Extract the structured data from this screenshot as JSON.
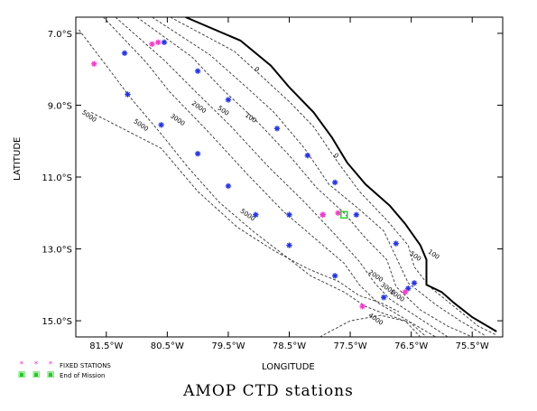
{
  "title": "AMOP CTD stations",
  "xlabel": "LONGITUDE",
  "ylabel": "LATITUDE",
  "x_ticks": [
    {
      "value": -81.5,
      "label": "81.5°W"
    },
    {
      "value": -80.5,
      "label": "80.5°W"
    },
    {
      "value": -79.5,
      "label": "79.5°W"
    },
    {
      "value": -78.5,
      "label": "78.5°W"
    },
    {
      "value": -77.5,
      "label": "77.5°W"
    },
    {
      "value": -76.5,
      "label": "76.5°W"
    },
    {
      "value": -75.5,
      "label": "75.5°W"
    }
  ],
  "y_ticks": [
    {
      "value": -7.0,
      "label": "7.0°S"
    },
    {
      "value": -9.0,
      "label": "9.0°S"
    },
    {
      "value": -11.0,
      "label": "11.0°S"
    },
    {
      "value": -13.0,
      "label": "13.0°S"
    },
    {
      "value": -15.0,
      "label": "15.0°S"
    }
  ],
  "x_range": [
    -82.0,
    -75.0
  ],
  "y_range": [
    -15.45,
    -6.55
  ],
  "legend": [
    {
      "label": "FIXED STATIONS",
      "color": "#ff33cc",
      "symbol": "asterisk"
    },
    {
      "label": "End of Mission",
      "color": "#22cc22",
      "symbol": "square"
    }
  ],
  "coastline": [
    [
      -80.2,
      -6.55
    ],
    [
      -79.3,
      -7.2
    ],
    [
      -78.8,
      -7.9
    ],
    [
      -78.5,
      -8.5
    ],
    [
      -78.1,
      -9.2
    ],
    [
      -77.8,
      -9.9
    ],
    [
      -77.55,
      -10.6
    ],
    [
      -77.25,
      -11.2
    ],
    [
      -76.85,
      -11.8
    ],
    [
      -76.6,
      -12.3
    ],
    [
      -76.35,
      -12.9
    ],
    [
      -76.25,
      -13.3
    ],
    [
      -76.25,
      -13.6
    ],
    [
      -76.25,
      -14.0
    ],
    [
      -76.0,
      -14.2
    ],
    [
      -75.8,
      -14.5
    ],
    [
      -75.5,
      -14.9
    ],
    [
      -75.1,
      -15.3
    ]
  ],
  "contours": [
    {
      "label": "100",
      "points": [
        [
          -80.45,
          -6.55
        ],
        [
          -79.4,
          -7.5
        ],
        [
          -78.95,
          -8.2
        ],
        [
          -78.5,
          -8.9
        ],
        [
          -78.1,
          -9.6
        ],
        [
          -77.7,
          -10.6
        ],
        [
          -77.35,
          -11.4
        ],
        [
          -76.9,
          -12.2
        ],
        [
          -76.55,
          -12.9
        ],
        [
          -76.45,
          -13.5
        ],
        [
          -76.2,
          -14.05
        ],
        [
          -75.8,
          -14.6
        ],
        [
          -75.4,
          -15.15
        ],
        [
          -75.1,
          -15.4
        ]
      ],
      "label_at": [
        -79.2,
        -9.35
      ]
    },
    {
      "label": "500",
      "points": [
        [
          -80.75,
          -6.55
        ],
        [
          -79.8,
          -7.6
        ],
        [
          -79.2,
          -8.5
        ],
        [
          -78.75,
          -9.2
        ],
        [
          -78.25,
          -10.2
        ],
        [
          -77.85,
          -11.2
        ],
        [
          -77.35,
          -11.9
        ],
        [
          -76.95,
          -12.5
        ],
        [
          -76.7,
          -13.4
        ],
        [
          -76.55,
          -13.95
        ],
        [
          -76.1,
          -14.55
        ],
        [
          -75.7,
          -15.0
        ],
        [
          -75.3,
          -15.4
        ]
      ],
      "label_at": [
        -79.6,
        -9.2
      ]
    },
    {
      "label": "1000",
      "points": [
        [
          -81.0,
          -6.55
        ],
        [
          -80.1,
          -7.65
        ],
        [
          -79.6,
          -8.55
        ],
        [
          -79.0,
          -9.5
        ],
        [
          -78.5,
          -10.4
        ],
        [
          -78.05,
          -11.3
        ],
        [
          -77.6,
          -12.0
        ],
        [
          -77.25,
          -12.7
        ],
        [
          -76.9,
          -13.3
        ],
        [
          -76.75,
          -14.05
        ],
        [
          -76.35,
          -14.7
        ],
        [
          -75.9,
          -15.15
        ],
        [
          -75.5,
          -15.45
        ]
      ],
      "label_at": [
        -76.7,
        -14.35
      ]
    },
    {
      "label": "2000",
      "points": [
        [
          -81.35,
          -6.55
        ],
        [
          -80.55,
          -7.75
        ],
        [
          -80.05,
          -8.6
        ],
        [
          -79.45,
          -9.6
        ],
        [
          -78.85,
          -10.7
        ],
        [
          -78.25,
          -11.7
        ],
        [
          -77.75,
          -12.6
        ],
        [
          -77.35,
          -13.35
        ],
        [
          -77.1,
          -13.95
        ],
        [
          -76.85,
          -14.4
        ],
        [
          -76.35,
          -14.95
        ],
        [
          -75.9,
          -15.45
        ]
      ],
      "label_at": [
        -80.1,
        -9.1
      ]
    },
    {
      "label": "3000",
      "points": [
        [
          -81.55,
          -6.55
        ],
        [
          -80.85,
          -7.8
        ],
        [
          -80.45,
          -8.65
        ],
        [
          -79.85,
          -9.7
        ],
        [
          -79.2,
          -10.9
        ],
        [
          -78.6,
          -11.95
        ],
        [
          -78.05,
          -12.75
        ],
        [
          -77.6,
          -13.4
        ],
        [
          -77.35,
          -14.0
        ],
        [
          -77.05,
          -14.5
        ],
        [
          -76.55,
          -15.0
        ],
        [
          -76.25,
          -15.45
        ]
      ],
      "label_at": [
        -80.5,
        -9.35
      ]
    },
    {
      "label": "5000",
      "points": [
        [
          -81.95,
          -6.9
        ],
        [
          -81.5,
          -7.9
        ],
        [
          -81.1,
          -8.8
        ],
        [
          -80.6,
          -9.8
        ],
        [
          -80.15,
          -10.75
        ],
        [
          -79.65,
          -11.7
        ],
        [
          -79.1,
          -12.5
        ],
        [
          -78.6,
          -13.15
        ],
        [
          -78.15,
          -13.75
        ],
        [
          -77.6,
          -14.2
        ],
        [
          -77.25,
          -14.6
        ],
        [
          -76.95,
          -14.8
        ],
        [
          -76.6,
          -15.0
        ],
        [
          -76.35,
          -15.45
        ]
      ],
      "label_at": [
        -80.95,
        -9.45
      ]
    },
    {
      "label": "5000",
      "points": [
        [
          -81.75,
          -9.2
        ],
        [
          -80.6,
          -10.2
        ],
        [
          -80.0,
          -11.4
        ],
        [
          -79.35,
          -12.4
        ],
        [
          -78.75,
          -13.05
        ],
        [
          -78.2,
          -13.55
        ],
        [
          -77.7,
          -13.9
        ],
        [
          -77.35,
          -14.3
        ],
        [
          -77.0,
          -14.5
        ],
        [
          -76.7,
          -14.75
        ]
      ],
      "label_at": [
        -79.3,
        -12.2
      ]
    },
    {
      "label": "4000",
      "points": [
        [
          -78.0,
          -15.45
        ],
        [
          -77.5,
          -15.0
        ],
        [
          -77.0,
          -14.85
        ],
        [
          -76.5,
          -15.05
        ],
        [
          -76.1,
          -15.45
        ]
      ],
      "label_at": [
        -77.1,
        -14.95
      ]
    }
  ],
  "contour_labels": [
    {
      "text": "0",
      "lon": -79.05,
      "lat": -8.05
    },
    {
      "text": "0",
      "lon": -77.75,
      "lat": -10.45
    },
    {
      "text": "100",
      "lon": -79.15,
      "lat": -9.4
    },
    {
      "text": "100",
      "lon": -76.15,
      "lat": -13.2
    },
    {
      "text": "500",
      "lon": -79.6,
      "lat": -9.2
    },
    {
      "text": "500",
      "lon": -76.45,
      "lat": -13.25
    },
    {
      "text": "1000",
      "lon": -76.75,
      "lat": -14.35
    },
    {
      "text": "2000",
      "lon": -80.0,
      "lat": -9.1
    },
    {
      "text": "2000",
      "lon": -77.1,
      "lat": -13.8
    },
    {
      "text": "3000",
      "lon": -80.35,
      "lat": -9.45
    },
    {
      "text": "3000",
      "lon": -76.9,
      "lat": -14.15
    },
    {
      "text": "5000",
      "lon": -80.95,
      "lat": -9.6
    },
    {
      "text": "5000",
      "lon": -81.8,
      "lat": -9.35
    },
    {
      "text": "5000",
      "lon": -79.2,
      "lat": -12.1
    },
    {
      "text": "4000",
      "lon": -77.1,
      "lat": -15.0
    }
  ],
  "stations": [
    {
      "lon": -81.2,
      "lat": -7.55,
      "color": "#2233ee"
    },
    {
      "lon": -80.55,
      "lat": -7.25,
      "color": "#2233ee"
    },
    {
      "lon": -80.0,
      "lat": -8.05,
      "color": "#2233ee"
    },
    {
      "lon": -79.5,
      "lat": -8.85,
      "color": "#2233ee"
    },
    {
      "lon": -81.15,
      "lat": -8.7,
      "color": "#2233ee"
    },
    {
      "lon": -80.6,
      "lat": -9.55,
      "color": "#2233ee"
    },
    {
      "lon": -78.7,
      "lat": -9.65,
      "color": "#2233ee"
    },
    {
      "lon": -80.0,
      "lat": -10.35,
      "color": "#2233ee"
    },
    {
      "lon": -78.2,
      "lat": -10.4,
      "color": "#2233ee"
    },
    {
      "lon": -79.5,
      "lat": -11.25,
      "color": "#2233ee"
    },
    {
      "lon": -77.75,
      "lat": -11.15,
      "color": "#2233ee"
    },
    {
      "lon": -79.05,
      "lat": -12.05,
      "color": "#2233ee"
    },
    {
      "lon": -78.5,
      "lat": -12.05,
      "color": "#2233ee"
    },
    {
      "lon": -77.95,
      "lat": -12.05,
      "color": "#2233ee"
    },
    {
      "lon": -77.4,
      "lat": -12.05,
      "color": "#2233ee"
    },
    {
      "lon": -78.5,
      "lat": -12.9,
      "color": "#2233ee"
    },
    {
      "lon": -76.75,
      "lat": -12.85,
      "color": "#2233ee"
    },
    {
      "lon": -77.75,
      "lat": -13.75,
      "color": "#2233ee"
    },
    {
      "lon": -76.55,
      "lat": -14.1,
      "color": "#2233ee"
    },
    {
      "lon": -76.45,
      "lat": -13.95,
      "color": "#2233ee"
    },
    {
      "lon": -76.95,
      "lat": -14.35,
      "color": "#2233ee"
    },
    {
      "lon": -81.7,
      "lat": -7.85,
      "color": "#ff33cc"
    },
    {
      "lon": -80.75,
      "lat": -7.3,
      "color": "#ff33cc"
    },
    {
      "lon": -80.65,
      "lat": -7.25,
      "color": "#ff33cc"
    },
    {
      "lon": -77.7,
      "lat": -12.0,
      "color": "#ff33cc"
    },
    {
      "lon": -77.95,
      "lat": -12.05,
      "color": "#ff33cc"
    },
    {
      "lon": -76.6,
      "lat": -14.2,
      "color": "#ff33cc"
    },
    {
      "lon": -77.3,
      "lat": -14.6,
      "color": "#ff33cc"
    }
  ],
  "end_of_mission": [
    {
      "lon": -77.6,
      "lat": -12.05
    }
  ]
}
